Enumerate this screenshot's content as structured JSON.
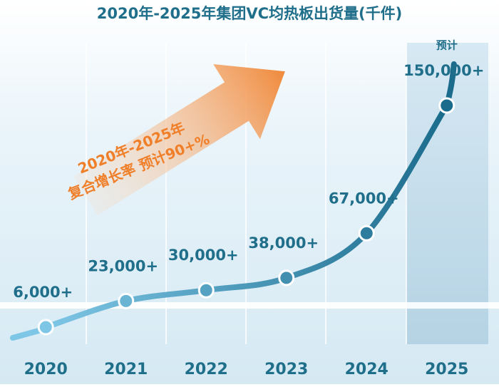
{
  "chart_data": {
    "type": "line",
    "title": "2020年-2025年集团VC均热板出货量(千件)",
    "annotation": [
      "2020年-2025年",
      "复合增长率 预计90+%"
    ],
    "forecast_note": "预计",
    "categories": [
      "2020",
      "2021",
      "2022",
      "2023",
      "2024",
      "2025"
    ],
    "values": [
      6000,
      23000,
      30000,
      38000,
      67000,
      150000
    ],
    "value_labels": [
      "6,000+",
      "23,000+",
      "30,000+",
      "38,000+",
      "67,000+",
      "150,000+"
    ],
    "color_start": "#7ec6e6",
    "color_end": "#1b6b8c"
  }
}
